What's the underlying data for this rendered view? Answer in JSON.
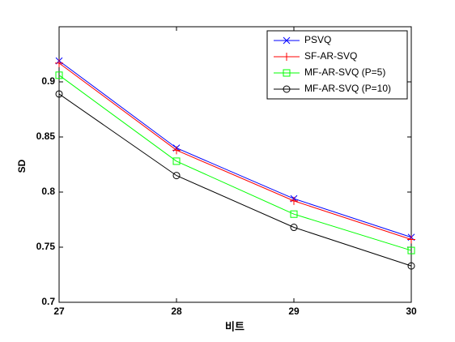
{
  "chart_data": {
    "type": "line",
    "x": [
      27,
      28,
      29,
      30
    ],
    "xlabel": "비트",
    "ylabel": "SD",
    "series": [
      {
        "name": "PSVQ",
        "color": "#0000ff",
        "marker": "x",
        "values": [
          0.919,
          0.84,
          0.794,
          0.759
        ]
      },
      {
        "name": "SF-AR-SVQ",
        "color": "#ff0000",
        "marker": "+",
        "values": [
          0.917,
          0.838,
          0.792,
          0.757
        ]
      },
      {
        "name": "MF-AR-SVQ (P=5)",
        "color": "#00ff00",
        "marker": "square",
        "values": [
          0.906,
          0.828,
          0.78,
          0.747
        ]
      },
      {
        "name": "MF-AR-SVQ (P=10)",
        "color": "#000000",
        "marker": "circle",
        "values": [
          0.889,
          0.815,
          0.768,
          0.733
        ]
      }
    ],
    "xlim": [
      27,
      30
    ],
    "xticks": [
      27,
      28,
      29,
      30
    ],
    "ylim": [
      0.7,
      0.95
    ],
    "yticks": [
      0.7,
      0.75,
      0.8,
      0.85,
      0.9
    ],
    "legend": "upper right"
  }
}
